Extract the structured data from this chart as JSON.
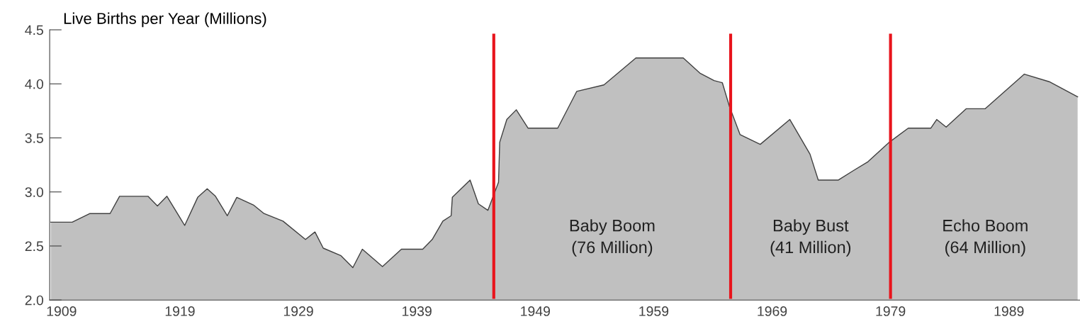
{
  "chart_data": {
    "type": "area",
    "title": "Live Births per Year (Millions)",
    "x": [
      1908.1,
      1909.9,
      1911.4,
      1913.1,
      1913.9,
      1916.3,
      1917.1,
      1917.9,
      1919.4,
      1920.5,
      1921.3,
      1922.0,
      1923.0,
      1923.8,
      1925.2,
      1926.1,
      1927.7,
      1929.6,
      1930.4,
      1931.1,
      1932.6,
      1933.6,
      1934.4,
      1936.1,
      1937.7,
      1939.5,
      1940.3,
      1941.2,
      1941.9,
      1942.0,
      1943.5,
      1944.2,
      1945.0,
      1945.9,
      1946.0,
      1946.6,
      1947.4,
      1948.4,
      1950.9,
      1952.5,
      1954.8,
      1957.5,
      1961.5,
      1962.9,
      1964.1,
      1964.8,
      1965.4,
      1966.3,
      1968.0,
      1970.5,
      1972.2,
      1972.9,
      1974.6,
      1975.9,
      1977.1,
      1978.9,
      1980.5,
      1982.4,
      1982.9,
      1983.7,
      1985.4,
      1987.0,
      1990.3,
      1992.4,
      1994.8
    ],
    "series": [
      {
        "color": "#c0c0c0",
        "values": [
          2.72,
          2.72,
          2.8,
          2.8,
          2.96,
          2.96,
          2.87,
          2.96,
          2.69,
          2.95,
          3.03,
          2.96,
          2.78,
          2.95,
          2.88,
          2.8,
          2.73,
          2.56,
          2.63,
          2.48,
          2.41,
          2.3,
          2.47,
          2.31,
          2.47,
          2.47,
          2.56,
          2.73,
          2.78,
          2.95,
          3.11,
          2.89,
          2.83,
          3.09,
          3.46,
          3.67,
          3.76,
          3.59,
          3.59,
          3.93,
          3.99,
          4.24,
          4.24,
          4.1,
          4.03,
          4.01,
          3.79,
          3.53,
          3.44,
          3.67,
          3.35,
          3.11,
          3.11,
          3.2,
          3.28,
          3.46,
          3.59,
          3.59,
          3.67,
          3.6,
          3.77,
          3.77,
          4.09,
          4.02,
          3.88
        ]
      }
    ],
    "xlim": [
      1908,
      1995
    ],
    "xticks": [
      1909,
      1919,
      1929,
      1939,
      1949,
      1959,
      1969,
      1979,
      1989
    ],
    "ylim": [
      2.0,
      4.5
    ],
    "yticks": [
      {
        "value": 2,
        "label": "2.0"
      },
      2.5,
      {
        "value": 3,
        "label": "3.0"
      },
      3.5,
      {
        "value": 4,
        "label": "4.0"
      },
      4.5
    ],
    "ref_lines": [
      {
        "axis": "x",
        "value": 1945.5,
        "color": "#e8141c"
      },
      {
        "axis": "x",
        "value": 1965.5,
        "color": "#e8141c"
      },
      {
        "axis": "x",
        "value": 1979,
        "color": "#e8141c"
      }
    ],
    "annotations": [
      "Baby Boom\n(76 Million)",
      "Baby Bust\n(41 Million)",
      "Echo Boom\n(64 Million)"
    ],
    "grid": false,
    "legend": false
  }
}
